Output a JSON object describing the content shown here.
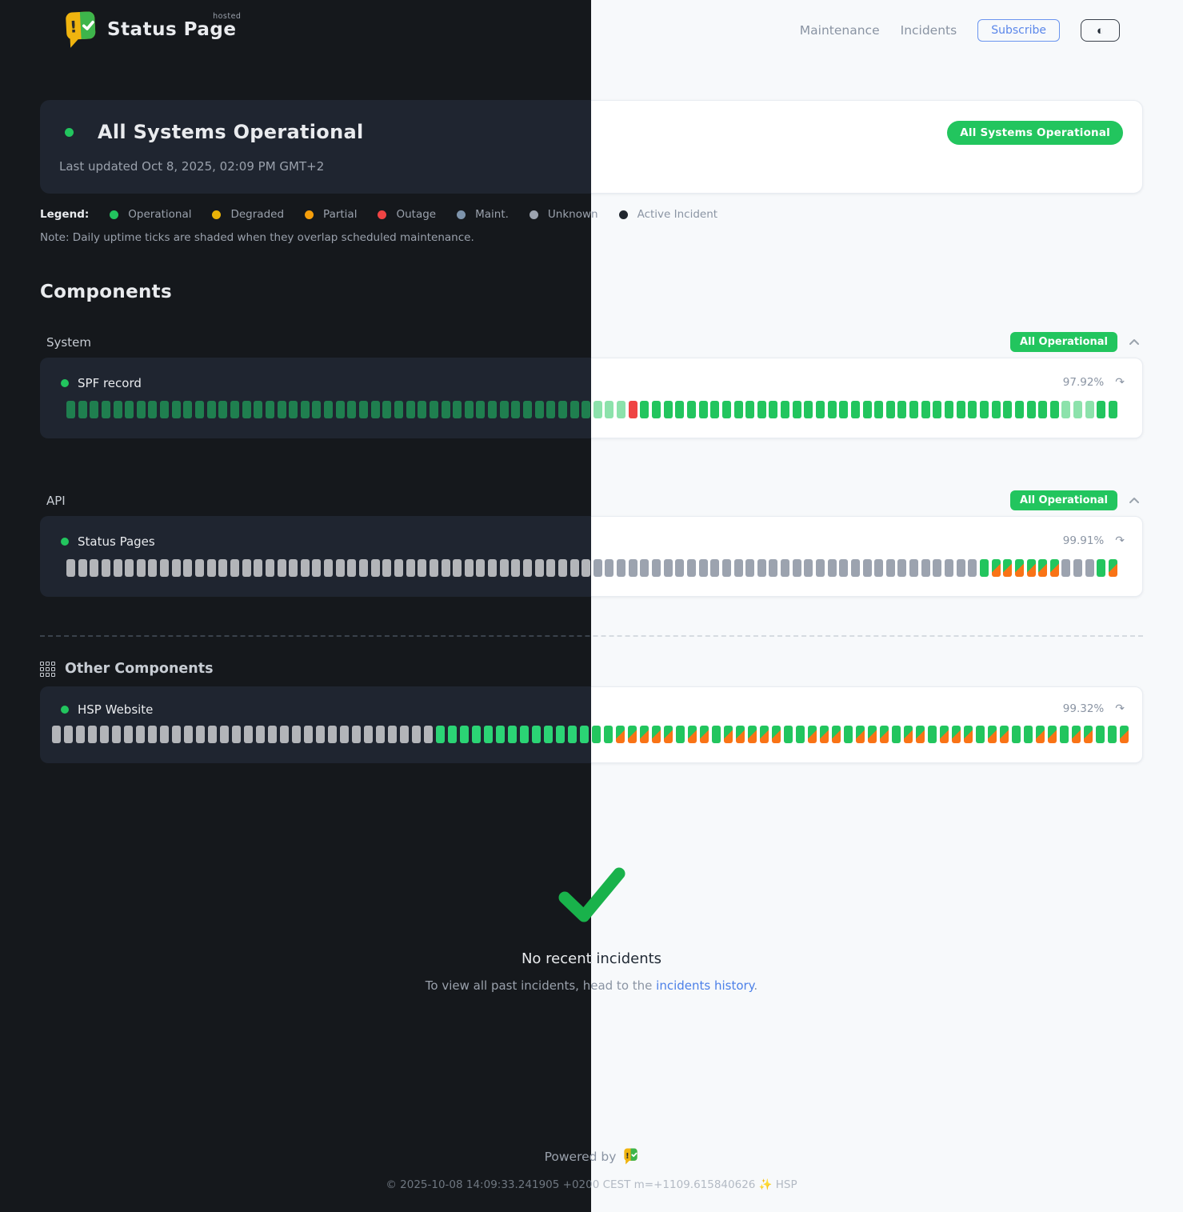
{
  "header": {
    "brand": "Status Page",
    "brand_sup": "hosted",
    "nav": [
      {
        "label": "Maintenance"
      },
      {
        "label": "Incidents"
      }
    ],
    "subscribe_label": "Subscribe",
    "theme_toggle_icon": "half-circle"
  },
  "banner": {
    "title": "All Systems Operational",
    "last_updated": "Last updated Oct 8, 2025, 02:09 PM GMT+2",
    "badge": "All Systems Operational"
  },
  "legend": {
    "label": "Legend:",
    "items": [
      {
        "label": "Operational",
        "color": "#22c55e"
      },
      {
        "label": "Degraded",
        "color": "#eab308"
      },
      {
        "label": "Partial",
        "color": "#f59e0b"
      },
      {
        "label": "Outage",
        "color": "#ef4444"
      },
      {
        "label": "Maint.",
        "color": "#7d93ab"
      },
      {
        "label": "Unknown",
        "color": "#9ca3af"
      },
      {
        "label": "Active Incident",
        "color": "var(--active-dot)"
      }
    ],
    "note": "Note: Daily uptime ticks are shaded when they overlap scheduled maintenance."
  },
  "components": {
    "title": "Components",
    "tick_legend": {
      "g": "operational",
      "G": "operational-bright",
      "p": "operational-faded",
      "r": "outage",
      "u": "unknown",
      "m": "maintenance-shaded"
    },
    "groups": [
      {
        "name": "System",
        "badge": "All Operational",
        "items": [
          {
            "name": "SPF record",
            "uptime": "97.92%",
            "ticks": "gggggggggggggggggggggggggggggggggggggggggggggppprggggggggggggggggggggggggggggggggggggpppgg"
          }
        ]
      },
      {
        "name": "API",
        "badge": "All Operational",
        "items": [
          {
            "name": "Status Pages",
            "uptime": "99.91%",
            "ticks": "uuuuuuuuuuuuuuuuuuuuuuuuuuuuuuuuuuuuuuuuuuuuuuuuuuuuuuuuuuuuuuuuuuuuuuuuuuuuuuGmmmmmmuuuGm"
          }
        ]
      }
    ],
    "other": {
      "title": "Other Components",
      "items": [
        {
          "name": "HSP Website",
          "uptime": "99.32%",
          "ticks": "uuuuuuuuuuuuuuuuuuuuuuuuuuuuuuuuGGGGGGGGGGGGGggmmmmmgmmgmmmmmggmmmgmmmgmmgmmmgmmggmmgmmggm"
        }
      ]
    }
  },
  "incidents": {
    "title": "No recent incidents",
    "subtitle_prefix": "To view all past incidents, head to the ",
    "link_text": "incidents history",
    "subtitle_suffix": "."
  },
  "footer": {
    "powered_by": "Powered by",
    "copyright": "© 2025-10-08 14:09:33.241905 +0200 CEST m=+1109.615840626 ✨ HSP"
  },
  "colors": {
    "operational": "#22c55e",
    "outage": "#ef4444",
    "maintenance_orange": "#f97316",
    "unknown": "#9ca3af",
    "link_blue": "#4c80e8"
  }
}
